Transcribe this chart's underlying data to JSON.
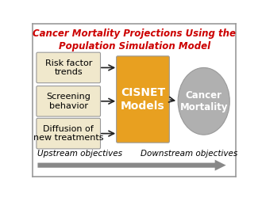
{
  "title_line1": "Cancer Mortality Projections Using the",
  "title_line2": "Population Simulation Model",
  "title_color": "#cc0000",
  "bg_color": "#ffffff",
  "border_color": "#999999",
  "left_boxes": [
    "Risk factor\ntrends",
    "Screening\nbehavior",
    "Diffusion of\nnew treatments"
  ],
  "left_box_facecolor": "#f0e8cc",
  "left_box_edgecolor": "#999999",
  "cisnet_label": "CISNET\nModels",
  "cisnet_facecolor": "#e8a020",
  "cisnet_edgecolor": "#999999",
  "mortality_label": "Cancer\nMortality",
  "mortality_facecolor": "#b0b0b0",
  "mortality_edgecolor": "#999999",
  "upstream_label": "Upstream objectives",
  "downstream_label": "Downstream objectives",
  "arrow_color": "#222222",
  "axis_arrow_color": "#888888"
}
